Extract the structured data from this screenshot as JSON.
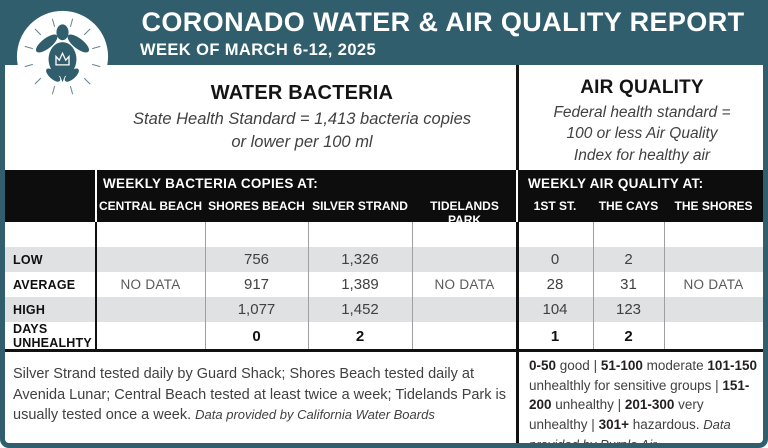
{
  "header": {
    "title": "CORONADO WATER & AIR QUALITY REPORT",
    "week": "WEEK OF MARCH 6-12, 2025"
  },
  "water_section": {
    "title": "WATER BACTERIA",
    "standard_lines": [
      "State Health Standard  = 1,413 bacteria copies",
      "or lower per 100 ml"
    ]
  },
  "air_section": {
    "title": "AIR QUALITY",
    "standard_lines": [
      "Federal health standard =",
      "100 or less Air Quality",
      "Index for healthy air"
    ]
  },
  "table": {
    "water_band_title": "WEEKLY BACTERIA COPIES AT:",
    "air_band_title": "WEEKLY AIR QUALITY AT:",
    "water_columns": [
      "CENTRAL BEACH",
      "SHORES BEACH",
      "SILVER STRAND",
      "TIDELANDS PARK"
    ],
    "air_columns": [
      "1ST ST.",
      "THE CAYS",
      "THE SHORES"
    ],
    "row_labels": [
      "LOW",
      "AVERAGE",
      "HIGH",
      "DAYS UNHEALHTY"
    ],
    "rows": [
      {
        "label": "LOW",
        "water": [
          "",
          "756",
          "1,326",
          ""
        ],
        "air": [
          "0",
          "2",
          ""
        ]
      },
      {
        "label": "AVERAGE",
        "water": [
          "NO DATA",
          "917",
          "1,389",
          "NO DATA"
        ],
        "air": [
          "28",
          "31",
          "NO DATA"
        ]
      },
      {
        "label": "HIGH",
        "water": [
          "",
          "1,077",
          "1,452",
          ""
        ],
        "air": [
          "104",
          "123",
          ""
        ]
      },
      {
        "label": "DAYS UNHEALHTY",
        "water": [
          "",
          "0",
          "2",
          ""
        ],
        "air": [
          "1",
          "2",
          ""
        ]
      }
    ]
  },
  "footer": {
    "water_note": "Silver Strand tested daily by Guard Shack; Shores Beach tested daily at Avenida Lunar; Central Beach tested at least twice a week; Tidelands Park is usually tested once a week.",
    "water_credit": "Data provided by California Water Boards",
    "air_scale": [
      {
        "range": "0-50",
        "desc": " good | "
      },
      {
        "range": "51-100",
        "desc": " moderate "
      },
      {
        "range": "101-150",
        "desc": " unhealthly for sensitive groups | "
      },
      {
        "range": "151-200",
        "desc": " unhealthy | "
      },
      {
        "range": "201-300",
        "desc": " very unhealthy | "
      },
      {
        "range": "301+",
        "desc": " hazardous. "
      }
    ],
    "air_credit": "Data provided by Purple Air"
  },
  "logo": {
    "name": "coronado-sea-turtle-crown-logo"
  },
  "colors": {
    "teal": "#305e6c",
    "band_black": "#0d0d0d",
    "stripe_gray": "#e0e1e3",
    "body_text": "#414042"
  }
}
